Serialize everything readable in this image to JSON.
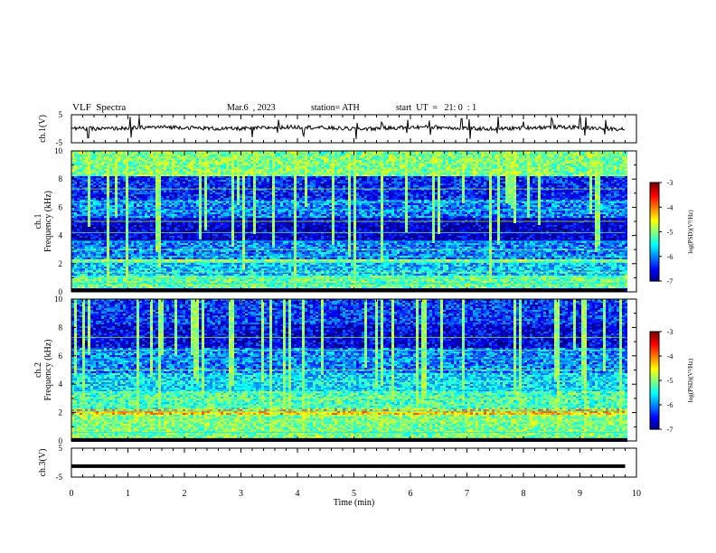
{
  "header": {
    "title": "VLF  Spectra",
    "date": "Mar.6  , 2023",
    "station": "station= ATH",
    "start": "start  UT  =   21: 0  : 1"
  },
  "chart_data": [
    {
      "type": "line",
      "panel": "ch1-waveform",
      "ylabel": "ch.1(V)",
      "ylim": [
        -5,
        5
      ],
      "yticks": [
        "5",
        "-5"
      ],
      "x_range_min": [
        0,
        9.8
      ],
      "level": 0.3,
      "spikes_min": [
        0.3,
        1.05,
        1.2,
        3.2,
        3.65,
        4.1,
        5.05,
        5.5,
        5.95,
        6.35,
        6.9,
        7.05,
        7.55,
        8.0,
        8.5,
        9.0,
        9.1,
        9.45
      ]
    },
    {
      "type": "heatmap",
      "panel": "ch1-spectrogram",
      "ylabel": "ch.1 Frequency (kHz)",
      "ylim": [
        0,
        10
      ],
      "yticks": [
        "0",
        "2",
        "4",
        "6",
        "8",
        "10"
      ],
      "x_range_min": [
        0,
        9.8
      ],
      "colorbar": {
        "label": "log(PSD)(V²/Hz)",
        "range": [
          -7,
          -3
        ],
        "ticks": [
          "-3",
          "-4",
          "-5",
          "-6",
          "-7"
        ]
      },
      "bands_khz": [
        {
          "from": 8.2,
          "to": 10,
          "level": -5.3
        },
        {
          "from": 2.0,
          "to": 2.3,
          "level": -4.9
        },
        {
          "from": 0.3,
          "to": 1.2,
          "level": -5.0
        },
        {
          "from": 0,
          "to": 0.2,
          "level": -7
        }
      ]
    },
    {
      "type": "heatmap",
      "panel": "ch2-spectrogram",
      "ylabel": "ch.2 Frequency (kHz)",
      "ylim": [
        0,
        10
      ],
      "yticks": [
        "0",
        "2",
        "4",
        "6",
        "8",
        "10"
      ],
      "x_range_min": [
        0,
        9.8
      ],
      "colorbar": {
        "label": "log(PSD)(V²/Hz)",
        "range": [
          -7,
          -3
        ],
        "ticks": [
          "-3",
          "-4",
          "-5",
          "-6",
          "-7"
        ]
      },
      "bands_khz": [
        {
          "from": 1.8,
          "to": 2.2,
          "level": -4.5
        },
        {
          "from": 0.5,
          "to": 3.5,
          "level": -5.3
        },
        {
          "from": 0,
          "to": 0.2,
          "level": -7
        }
      ]
    },
    {
      "type": "line",
      "panel": "ch3-waveform",
      "ylabel": "ch.3(V)",
      "ylim": [
        -5,
        5
      ],
      "yticks": [
        "5",
        "-5"
      ],
      "x_range_min": [
        0,
        9.8
      ],
      "level": -1.2
    }
  ],
  "xaxis": {
    "label": "Time  (min)",
    "range": [
      0,
      10
    ],
    "ticks": [
      "0",
      "1",
      "2",
      "3",
      "4",
      "5",
      "6",
      "7",
      "8",
      "9",
      "10"
    ]
  }
}
